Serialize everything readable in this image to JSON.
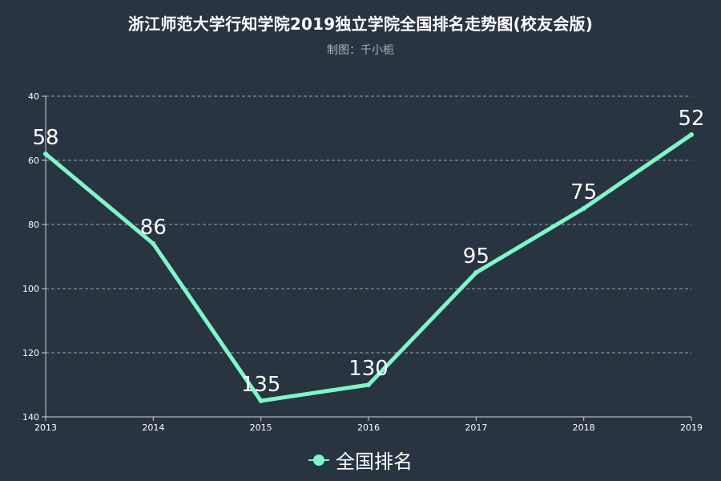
{
  "title": "浙江师范大学行知学院2019独立学院全国排名走势图(校友会版)",
  "subtitle": "制图：千小栀",
  "legend": {
    "label": "全国排名"
  },
  "colors": {
    "background": "#283440",
    "series": "#7ff6c9",
    "grid": "#9aa3ab",
    "text": "#ffffff"
  },
  "chart_data": {
    "type": "line",
    "title": "浙江师范大学行知学院2019独立学院全国排名走势图(校友会版)",
    "subtitle": "制图：千小栀",
    "categories": [
      "2013",
      "2014",
      "2015",
      "2016",
      "2017",
      "2018",
      "2019"
    ],
    "series": [
      {
        "name": "全国排名",
        "values": [
          58,
          86,
          135,
          130,
          95,
          75,
          52
        ]
      }
    ],
    "yticks": [
      "40",
      "60",
      "80",
      "100",
      "120",
      "140"
    ],
    "ylim": [
      40,
      140
    ],
    "y_inverted": true,
    "grid": true,
    "legend_position": "bottom-center"
  }
}
